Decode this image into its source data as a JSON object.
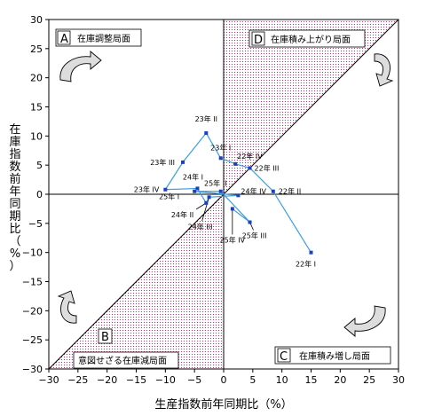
{
  "chart_data": {
    "type": "scatter",
    "xlabel": "生産指数前年同期比（%）",
    "ylabel": "在庫指数前年同期比（%）",
    "xlim": [
      -30,
      30
    ],
    "ylim": [
      -30,
      30
    ],
    "xticks": [
      "−30",
      "−25",
      "−20",
      "−15",
      "−10",
      "−5",
      "0",
      "5",
      "10",
      "15",
      "20",
      "25",
      "30"
    ],
    "yticks": [
      "30",
      "25",
      "20",
      "15",
      "10",
      "5",
      "0",
      "−5",
      "−10",
      "−15",
      "−20",
      "−25",
      "−30"
    ],
    "grid": false,
    "quadrants": [
      {
        "letter": "A",
        "label": "在庫調整局面"
      },
      {
        "letter": "D",
        "label": "在庫積み上がり局面"
      },
      {
        "letter": "B",
        "label": "意図せざる在庫減局面"
      },
      {
        "letter": "C",
        "label": "在庫積み増し局面"
      }
    ],
    "series_color": "#3a9ee0",
    "shade_color": "#cc2a7a",
    "points": [
      {
        "label": "22年 I",
        "x": 15.0,
        "y": -10.0
      },
      {
        "label": "22年 II",
        "x": 8.5,
        "y": 0.5
      },
      {
        "label": "22年 III",
        "x": 4.5,
        "y": 4.5
      },
      {
        "label": "22年 IV",
        "x": 2.0,
        "y": 5.2
      },
      {
        "label": "23年 I",
        "x": -0.5,
        "y": 6.2
      },
      {
        "label": "23年 II",
        "x": -3.0,
        "y": 10.5
      },
      {
        "label": "23年 III",
        "x": -7.0,
        "y": 5.5
      },
      {
        "label": "23年 IV",
        "x": -10.0,
        "y": 0.8
      },
      {
        "label": "24年 I",
        "x": -4.5,
        "y": 1.0
      },
      {
        "label": "24年 II",
        "x": -3.0,
        "y": -1.5
      },
      {
        "label": "24年 III",
        "x": -2.5,
        "y": -0.5
      },
      {
        "label": "24年 IV",
        "x": 2.5,
        "y": -0.2
      },
      {
        "label": "25年 I",
        "x": -5.0,
        "y": 0.5
      },
      {
        "label": "25年 II",
        "x": -0.5,
        "y": 0.5
      },
      {
        "label": "25年 III",
        "x": 4.5,
        "y": -4.8
      },
      {
        "label": "25年 IV",
        "x": 1.5,
        "y": -2.5
      }
    ]
  }
}
